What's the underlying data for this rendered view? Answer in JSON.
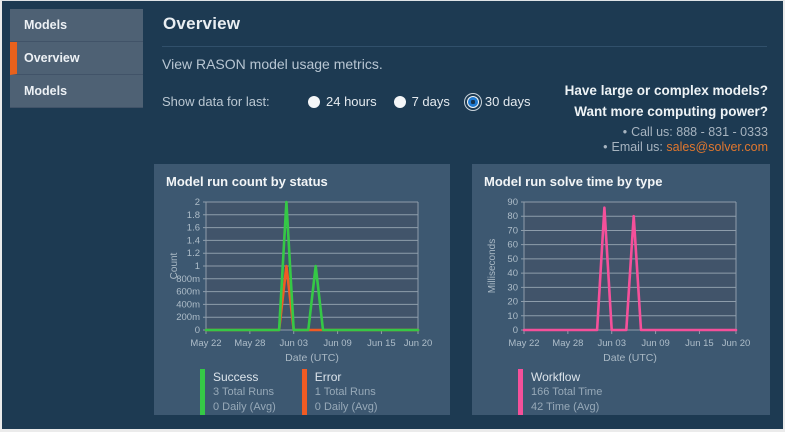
{
  "sidebar": {
    "items": [
      {
        "label": "Models",
        "active": false
      },
      {
        "label": "Overview",
        "active": true
      },
      {
        "label": "Models",
        "active": false
      }
    ]
  },
  "header": {
    "title": "Overview",
    "subtitle": "View RASON model usage metrics."
  },
  "filter": {
    "label": "Show data for last:",
    "options": [
      {
        "label": "24 hours",
        "selected": false
      },
      {
        "label": "7 days",
        "selected": false
      },
      {
        "label": "30 days",
        "selected": true
      }
    ]
  },
  "promo": {
    "line1": "Have large or complex models?",
    "line2": "Want more computing power?",
    "call_label": "Call us:",
    "call_value": "888 - 831 - 0333",
    "email_label": "Email us:",
    "email_value": "sales@solver.com"
  },
  "colors": {
    "page_bg": "#1d3a52",
    "sidebar_item_bg": "#4e6174",
    "accent_orange": "#e8611c",
    "panel_bg": "#3d5871",
    "plot_bg": "#41546a",
    "grid": "#8e9dab",
    "tick_text": "#aebdc9",
    "success_green": "#35c846",
    "error_orange": "#f05b24",
    "workflow_pink": "#f5509a",
    "link_orange": "#e0772e",
    "radio_blue": "#1f7ad1"
  },
  "chart_data": [
    {
      "type": "line",
      "title": "Model run count by status",
      "xlabel": "Date (UTC)",
      "ylabel": "Count",
      "grid": true,
      "legend_position": "bottom-left",
      "ylim": [
        0,
        2
      ],
      "y_tick_labels": [
        "2",
        "1.8",
        "1.6",
        "1.4",
        "1.2",
        "1",
        "800m",
        "600m",
        "400m",
        "200m",
        "0"
      ],
      "x": [
        "May 22",
        "May 23",
        "May 24",
        "May 25",
        "May 26",
        "May 27",
        "May 28",
        "May 29",
        "May 30",
        "May 31",
        "Jun 01",
        "Jun 02",
        "Jun 03",
        "Jun 04",
        "Jun 05",
        "Jun 06",
        "Jun 07",
        "Jun 08",
        "Jun 09",
        "Jun 10",
        "Jun 11",
        "Jun 12",
        "Jun 13",
        "Jun 14",
        "Jun 15",
        "Jun 16",
        "Jun 17",
        "Jun 18",
        "Jun 19",
        "Jun 20"
      ],
      "x_tick_indices": [
        0,
        6,
        12,
        18,
        24,
        29
      ],
      "x_tick_labels": [
        "May 22",
        "May 28",
        "Jun 03",
        "Jun 09",
        "Jun 15",
        "Jun 20"
      ],
      "series": [
        {
          "name": "Success",
          "color": "#35c846",
          "values": [
            0,
            0,
            0,
            0,
            0,
            0,
            0,
            0,
            0,
            0,
            0,
            2,
            0,
            0,
            0,
            1,
            0,
            0,
            0,
            0,
            0,
            0,
            0,
            0,
            0,
            0,
            0,
            0,
            0,
            0
          ],
          "legend_lines": [
            "3 Total Runs",
            "0 Daily (Avg)"
          ]
        },
        {
          "name": "Error",
          "color": "#f05b24",
          "values": [
            0,
            0,
            0,
            0,
            0,
            0,
            0,
            0,
            0,
            0,
            0,
            1,
            0,
            0,
            0,
            0,
            0,
            0,
            0,
            0,
            0,
            0,
            0,
            0,
            0,
            0,
            0,
            0,
            0,
            0
          ],
          "legend_lines": [
            "1 Total Runs",
            "0 Daily (Avg)"
          ]
        }
      ]
    },
    {
      "type": "line",
      "title": "Model run solve time by type",
      "xlabel": "Date (UTC)",
      "ylabel": "Milliseconds",
      "grid": true,
      "legend_position": "bottom-left",
      "ylim": [
        0,
        90
      ],
      "y_tick_labels": [
        "90",
        "80",
        "70",
        "60",
        "50",
        "40",
        "30",
        "20",
        "10",
        "0"
      ],
      "x": [
        "May 22",
        "May 23",
        "May 24",
        "May 25",
        "May 26",
        "May 27",
        "May 28",
        "May 29",
        "May 30",
        "May 31",
        "Jun 01",
        "Jun 02",
        "Jun 03",
        "Jun 04",
        "Jun 05",
        "Jun 06",
        "Jun 07",
        "Jun 08",
        "Jun 09",
        "Jun 10",
        "Jun 11",
        "Jun 12",
        "Jun 13",
        "Jun 14",
        "Jun 15",
        "Jun 16",
        "Jun 17",
        "Jun 18",
        "Jun 19",
        "Jun 20"
      ],
      "x_tick_indices": [
        0,
        6,
        12,
        18,
        24,
        29
      ],
      "x_tick_labels": [
        "May 22",
        "May 28",
        "Jun 03",
        "Jun 09",
        "Jun 15",
        "Jun 20"
      ],
      "series": [
        {
          "name": "Workflow",
          "color": "#f5509a",
          "values": [
            0,
            0,
            0,
            0,
            0,
            0,
            0,
            0,
            0,
            0,
            0,
            86,
            0,
            0,
            0,
            80,
            0,
            0,
            0,
            0,
            0,
            0,
            0,
            0,
            0,
            0,
            0,
            0,
            0,
            0
          ],
          "legend_lines": [
            "166 Total Time",
            "42 Time (Avg)"
          ]
        }
      ]
    }
  ]
}
